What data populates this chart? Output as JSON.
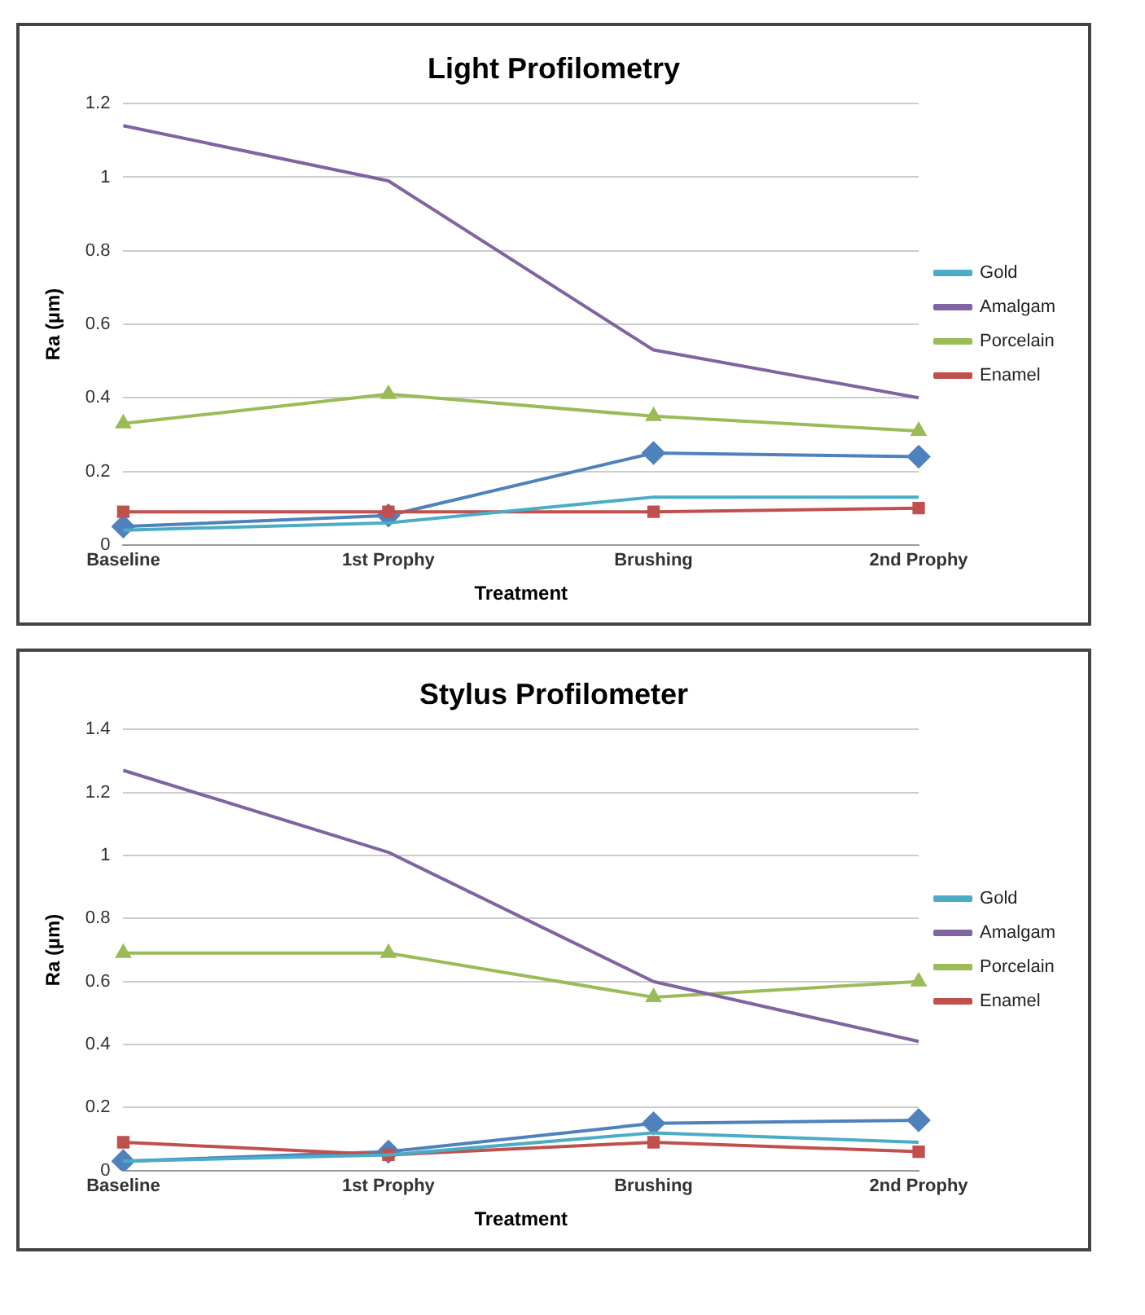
{
  "chart_data": [
    {
      "type": "line",
      "title": "Light Profilometry",
      "xlabel": "Treatment",
      "ylabel": "Ra (µm)",
      "categories": [
        "Baseline",
        "1st Prophy",
        "Brushing",
        "2nd Prophy"
      ],
      "ylim": [
        0,
        1.2
      ],
      "yticks": [
        0,
        0.2,
        0.4,
        0.6,
        0.8,
        1,
        1.2
      ],
      "grid": "y",
      "legend": "right",
      "series": [
        {
          "color": "#4f81bd",
          "marker": "diamond",
          "values": [
            0.05,
            0.08,
            0.25,
            0.24
          ]
        },
        {
          "name": "Enamel",
          "color": "#c0504d",
          "marker": "square",
          "values": [
            0.09,
            0.09,
            0.09,
            0.1
          ]
        },
        {
          "name": "Porcelain",
          "color": "#9bbb59",
          "marker": "triangle",
          "values": [
            0.33,
            0.41,
            0.35,
            0.31
          ]
        },
        {
          "name": "Amalgam",
          "color": "#8064a2",
          "marker": "none",
          "values": [
            1.14,
            0.99,
            0.53,
            0.4
          ]
        },
        {
          "name": "Gold",
          "color": "#4bacc6",
          "marker": "none",
          "values": [
            0.04,
            0.06,
            0.13,
            0.13
          ]
        }
      ]
    },
    {
      "type": "line",
      "title": "Stylus Profilometer",
      "xlabel": "Treatment",
      "ylabel": "Ra (µm)",
      "categories": [
        "Baseline",
        "1st Prophy",
        "Brushing",
        "2nd Prophy"
      ],
      "ylim": [
        0,
        1.4
      ],
      "yticks": [
        0,
        0.2,
        0.4,
        0.6,
        0.8,
        1,
        1.2,
        1.4
      ],
      "grid": "y",
      "legend": "right",
      "series": [
        {
          "color": "#4f81bd",
          "marker": "diamond",
          "values": [
            0.03,
            0.06,
            0.15,
            0.16
          ]
        },
        {
          "name": "Enamel",
          "color": "#c0504d",
          "marker": "square",
          "values": [
            0.09,
            0.05,
            0.09,
            0.06
          ]
        },
        {
          "name": "Porcelain",
          "color": "#9bbb59",
          "marker": "triangle",
          "values": [
            0.69,
            0.69,
            0.55,
            0.6
          ]
        },
        {
          "name": "Amalgam",
          "color": "#8064a2",
          "marker": "none",
          "values": [
            1.27,
            1.01,
            0.6,
            0.41
          ]
        },
        {
          "name": "Gold",
          "color": "#4bacc6",
          "marker": "none",
          "values": [
            0.03,
            0.05,
            0.12,
            0.09
          ]
        }
      ]
    }
  ]
}
